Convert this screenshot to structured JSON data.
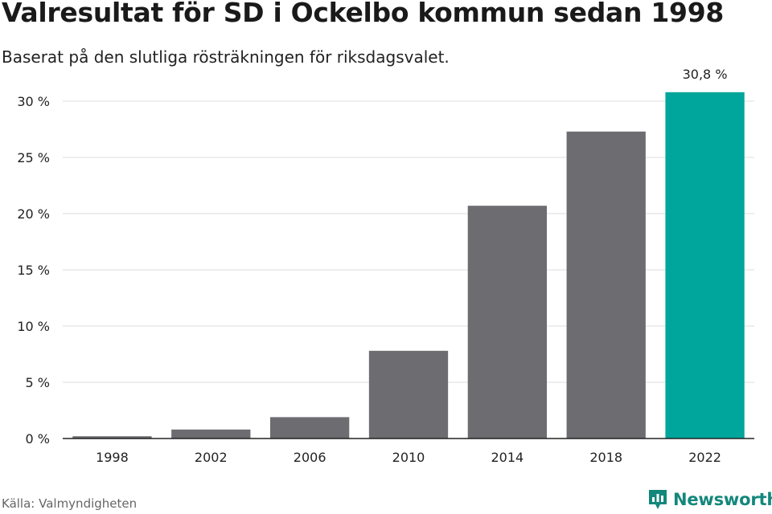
{
  "header": {
    "title": "Valresultat för SD i Ockelbo kommun sedan 1998",
    "subtitle": "Baserat på den slutliga rösträkningen för riksdagsvalet."
  },
  "footer": {
    "source": "Källa: Valmyndigheten",
    "brand": "Newsworthy"
  },
  "colors": {
    "bar": "#6d6c71",
    "highlight": "#00a59b",
    "grid": "#dddddd",
    "axis": "#222222",
    "brand": "#13877c"
  },
  "chart_data": {
    "type": "bar",
    "categories": [
      "1998",
      "2002",
      "2006",
      "2010",
      "2014",
      "2018",
      "2022"
    ],
    "values": [
      0.2,
      0.8,
      1.9,
      7.8,
      20.7,
      27.3,
      30.8
    ],
    "highlight_index": 6,
    "ylim": [
      0,
      30
    ],
    "yticks": [
      0,
      5,
      10,
      15,
      20,
      25,
      30
    ],
    "ytick_labels": [
      "0 %",
      "5 %",
      "10 %",
      "15 %",
      "20 %",
      "25 %",
      "30 %"
    ],
    "data_labels": [
      "",
      "",
      "",
      "",
      "",
      "",
      "30,8 %"
    ],
    "xlabel": "",
    "ylabel": "",
    "grid": true,
    "legend": "none"
  }
}
